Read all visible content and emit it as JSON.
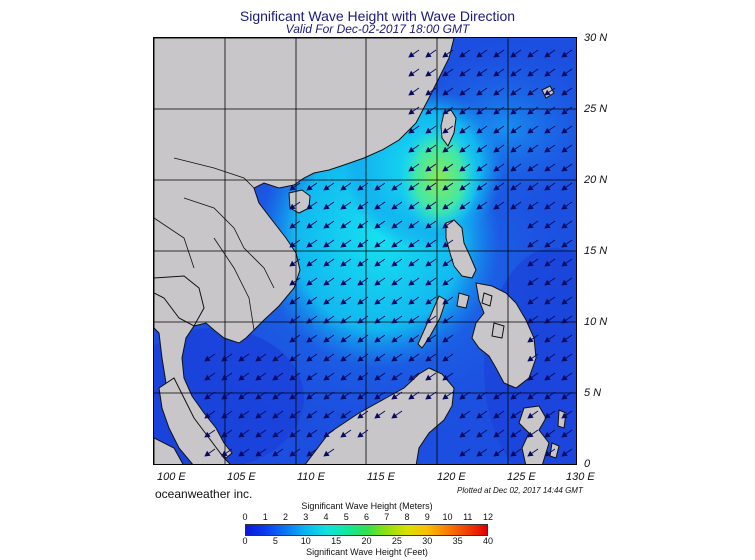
{
  "title": "Significant Wave Height with Wave Direction",
  "subtitle": "Valid For Dec-02-2017 18:00 GMT",
  "lat_labels": [
    "30 N",
    "25 N",
    "20 N",
    "15 N",
    "10 N",
    "5 N",
    "0"
  ],
  "lon_labels": [
    "100 E",
    "105 E",
    "110 E",
    "115 E",
    "120 E",
    "125 E",
    "130 E"
  ],
  "brand": "oceanweather inc.",
  "plotted": "Plotted at Dec 02, 2017 14:44 GMT",
  "colorbar": {
    "meters_title": "Significant Wave Height (Meters)",
    "feet_title": "Significant Wave Height (Feet)",
    "meters_ticks": [
      "0",
      "1",
      "2",
      "3",
      "4",
      "5",
      "6",
      "7",
      "8",
      "9",
      "10",
      "11",
      "12"
    ],
    "feet_ticks": [
      "0",
      "5",
      "10",
      "15",
      "20",
      "25",
      "30",
      "35",
      "40"
    ],
    "colors": [
      "#0b18d8",
      "#0a3df0",
      "#0a78f5",
      "#0ab8f0",
      "#10e0e0",
      "#10e8a0",
      "#30e050",
      "#90e010",
      "#d8e000",
      "#f8c000",
      "#f88000",
      "#f04000",
      "#e00000"
    ]
  },
  "map_colors": {
    "land": "#c8c6c8",
    "deep_sea": "#1c4fe0",
    "moderate_sea": "#1890f0",
    "high_sea": "#19d8f0",
    "peak_sea": "#7ae85a",
    "arrow": "#0a0a60"
  }
}
